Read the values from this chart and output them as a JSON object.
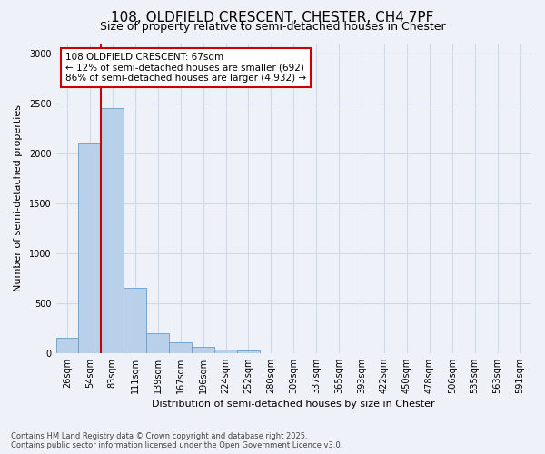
{
  "title_line1": "108, OLDFIELD CRESCENT, CHESTER, CH4 7PF",
  "title_line2": "Size of property relative to semi-detached houses in Chester",
  "xlabel": "Distribution of semi-detached houses by size in Chester",
  "ylabel": "Number of semi-detached properties",
  "categories": [
    "26sqm",
    "54sqm",
    "83sqm",
    "111sqm",
    "139sqm",
    "167sqm",
    "196sqm",
    "224sqm",
    "252sqm",
    "280sqm",
    "309sqm",
    "337sqm",
    "365sqm",
    "393sqm",
    "422sqm",
    "450sqm",
    "478sqm",
    "506sqm",
    "535sqm",
    "563sqm",
    "591sqm"
  ],
  "values": [
    150,
    2100,
    2450,
    650,
    200,
    105,
    60,
    30,
    25,
    0,
    0,
    0,
    0,
    0,
    0,
    0,
    0,
    0,
    0,
    0,
    0
  ],
  "bar_color": "#b8d0ea",
  "bar_edge_color": "#6a9dc8",
  "vline_color": "#cc0000",
  "vline_x": 1.5,
  "annotation_text_line1": "108 OLDFIELD CRESCENT: 67sqm",
  "annotation_text_line2": "← 12% of semi-detached houses are smaller (692)",
  "annotation_text_line3": "86% of semi-detached houses are larger (4,932) →",
  "ylim": [
    0,
    3100
  ],
  "yticks": [
    0,
    500,
    1000,
    1500,
    2000,
    2500,
    3000
  ],
  "grid_color": "#d0d8e8",
  "background_color": "#eef2f8",
  "footer_line1": "Contains HM Land Registry data © Crown copyright and database right 2025.",
  "footer_line2": "Contains public sector information licensed under the Open Government Licence v3.0.",
  "title_fontsize": 11,
  "subtitle_fontsize": 9,
  "label_fontsize": 8,
  "tick_fontsize": 7,
  "annotation_fontsize": 7.5
}
